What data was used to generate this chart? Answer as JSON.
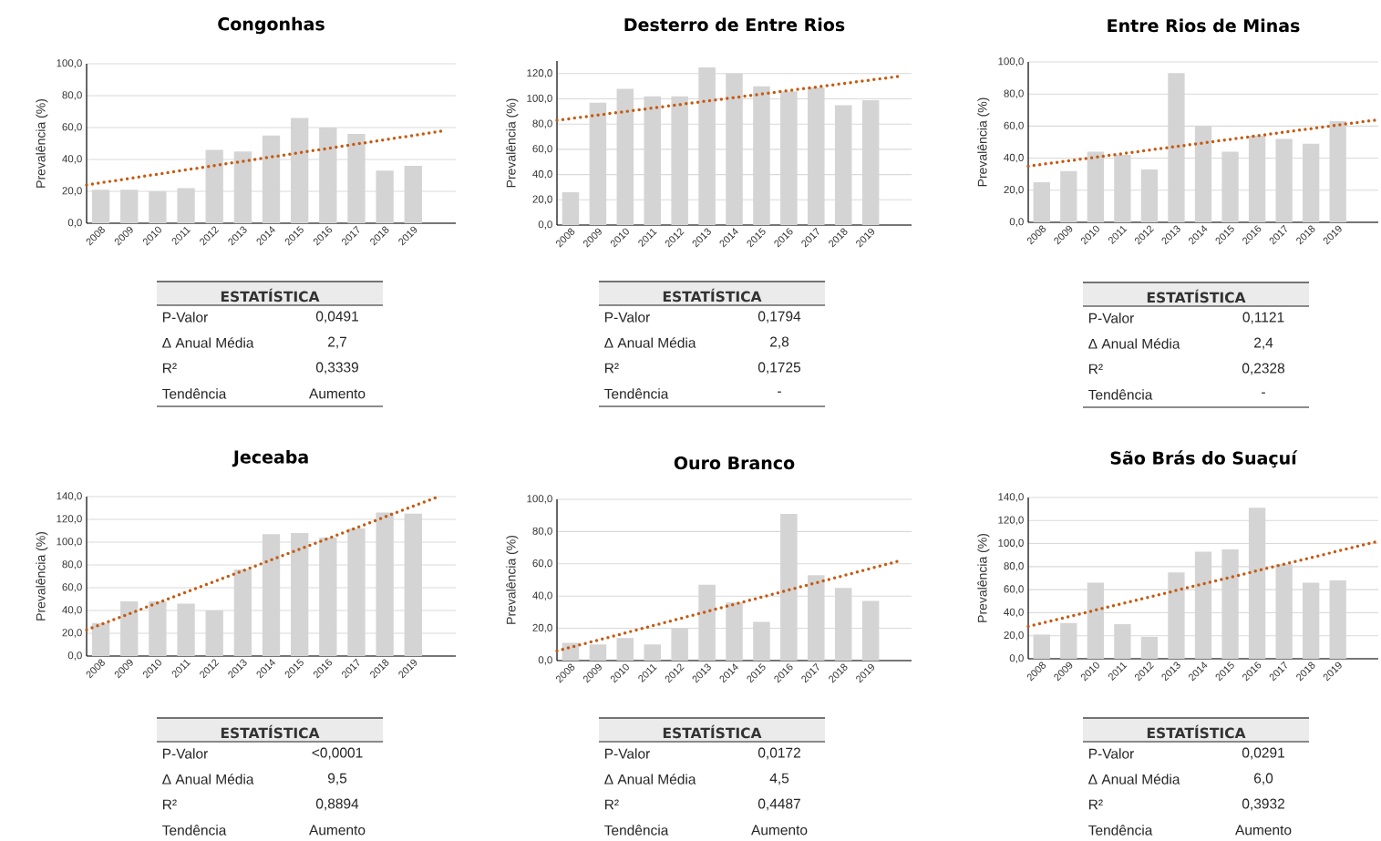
{
  "chart_data": [
    {
      "type": "bar",
      "title": "Congonhas",
      "ylabel": "Prevalência (%)",
      "x": [
        2008,
        2009,
        2010,
        2011,
        2012,
        2013,
        2014,
        2015,
        2016,
        2017,
        2018,
        2019
      ],
      "xlim": [
        2007.5,
        2020.5
      ],
      "xticks": [
        2008,
        2009,
        2010,
        2011,
        2012,
        2013,
        2014,
        2015,
        2016,
        2017,
        2018,
        2019
      ],
      "ylim": [
        0,
        100
      ],
      "yticks": [
        {
          "value": 0,
          "label": "0,0"
        },
        {
          "value": 20,
          "label": "20,0"
        },
        {
          "value": 40,
          "label": "40,0"
        },
        {
          "value": 60,
          "label": "60,0"
        },
        {
          "value": 80,
          "label": "80,0"
        },
        {
          "value": 100,
          "label": "100,0"
        }
      ],
      "grid": "y",
      "series": [
        {
          "color": "#d4d4d4",
          "values": [
            21,
            21,
            20,
            22,
            46,
            45,
            55,
            66,
            60,
            56,
            33,
            36
          ]
        },
        {
          "type": "line",
          "color": "#c55a11",
          "line_style": "dotted",
          "marker": "none",
          "x": [
            2007.5,
            2020.1
          ],
          "values": [
            24,
            58
          ]
        }
      ],
      "annotations": [
        "ESTATÍSTICA",
        "P-Valor",
        "0,0491",
        "Δ Anual Média",
        "2,7",
        "R²",
        "0,3339",
        "Tendência",
        "Aumento"
      ]
    },
    {
      "type": "bar",
      "title": "Desterro de Entre Rios",
      "ylabel": "Prevalência (%)",
      "x": [
        2008,
        2009,
        2010,
        2011,
        2012,
        2013,
        2014,
        2015,
        2016,
        2017,
        2018,
        2019
      ],
      "xlim": [
        2007.5,
        2020.5
      ],
      "xticks": [
        2008,
        2009,
        2010,
        2011,
        2012,
        2013,
        2014,
        2015,
        2016,
        2017,
        2018,
        2019
      ],
      "ylim": [
        0,
        130
      ],
      "yticks": [
        {
          "value": 0,
          "label": "0,0"
        },
        {
          "value": 20,
          "label": "20,0"
        },
        {
          "value": 40,
          "label": "40,0"
        },
        {
          "value": 60,
          "label": "60,0"
        },
        {
          "value": 80,
          "label": "80,0"
        },
        {
          "value": 100,
          "label": "100,0"
        },
        {
          "value": 120,
          "label": "120,0"
        }
      ],
      "grid": "y",
      "series": [
        {
          "color": "#d4d4d4",
          "values": [
            26,
            97,
            108,
            102,
            102,
            125,
            120,
            110,
            106,
            109,
            95,
            99
          ]
        },
        {
          "type": "line",
          "color": "#c55a11",
          "line_style": "dotted",
          "marker": "none",
          "x": [
            2007.5,
            2020.1
          ],
          "values": [
            83,
            118
          ]
        }
      ],
      "annotations": [
        "ESTATÍSTICA",
        "P-Valor",
        "0,1794",
        "Δ Anual Média",
        "2,8",
        "R²",
        "0,1725",
        "Tendência",
        "-"
      ]
    },
    {
      "type": "bar",
      "title": "Entre Rios de Minas",
      "ylabel": "Prevalência (%)",
      "x": [
        2008,
        2009,
        2010,
        2011,
        2012,
        2013,
        2014,
        2015,
        2016,
        2017,
        2018,
        2019
      ],
      "xlim": [
        2007.5,
        2020.5
      ],
      "xticks": [
        2008,
        2009,
        2010,
        2011,
        2012,
        2013,
        2014,
        2015,
        2016,
        2017,
        2018,
        2019
      ],
      "ylim": [
        0,
        100
      ],
      "yticks": [
        {
          "value": 0,
          "label": "0,0"
        },
        {
          "value": 20,
          "label": "20,0"
        },
        {
          "value": 40,
          "label": "40,0"
        },
        {
          "value": 60,
          "label": "60,0"
        },
        {
          "value": 80,
          "label": "80,0"
        },
        {
          "value": 100,
          "label": "100,0"
        }
      ],
      "grid": "y",
      "series": [
        {
          "color": "#d4d4d4",
          "values": [
            25,
            32,
            44,
            42,
            33,
            93,
            60,
            44,
            54,
            52,
            49,
            63
          ]
        },
        {
          "type": "line",
          "color": "#c55a11",
          "line_style": "dotted",
          "marker": "none",
          "x": [
            2007.5,
            2020.5
          ],
          "values": [
            35,
            64
          ]
        }
      ],
      "annotations": [
        "ESTATÍSTICA",
        "P-Valor",
        "0,1121",
        "Δ Anual Média",
        "2,4",
        "R²",
        "0,2328",
        "Tendência",
        "-"
      ]
    },
    {
      "type": "bar",
      "title": "Jeceaba",
      "ylabel": "Prevalência (%)",
      "x": [
        2008,
        2009,
        2010,
        2011,
        2012,
        2013,
        2014,
        2015,
        2016,
        2017,
        2018,
        2019
      ],
      "xlim": [
        2007.5,
        2020.5
      ],
      "xticks": [
        2008,
        2009,
        2010,
        2011,
        2012,
        2013,
        2014,
        2015,
        2016,
        2017,
        2018,
        2019
      ],
      "ylim": [
        0,
        140
      ],
      "yticks": [
        {
          "value": 0,
          "label": "0,0"
        },
        {
          "value": 20,
          "label": "20,0"
        },
        {
          "value": 40,
          "label": "40,0"
        },
        {
          "value": 60,
          "label": "60,0"
        },
        {
          "value": 80,
          "label": "80,0"
        },
        {
          "value": 100,
          "label": "100,0"
        },
        {
          "value": 120,
          "label": "120,0"
        },
        {
          "value": 140,
          "label": "140,0"
        }
      ],
      "grid": "y",
      "series": [
        {
          "color": "#d4d4d4",
          "values": [
            29,
            48,
            48,
            46,
            40,
            76,
            107,
            108,
            104,
            112,
            126,
            125
          ]
        },
        {
          "type": "line",
          "color": "#c55a11",
          "line_style": "dotted",
          "marker": "none",
          "x": [
            2007.5,
            2019.9
          ],
          "values": [
            23,
            140
          ]
        }
      ],
      "annotations": [
        "ESTATÍSTICA",
        "P-Valor",
        "<0,0001",
        "Δ Anual Média",
        "9,5",
        "R²",
        "0,8894",
        "Tendência",
        "Aumento"
      ]
    },
    {
      "type": "bar",
      "title": "Ouro Branco",
      "ylabel": "Prevalência (%)",
      "x": [
        2008,
        2009,
        2010,
        2011,
        2012,
        2013,
        2014,
        2015,
        2016,
        2017,
        2018,
        2019
      ],
      "xlim": [
        2007.5,
        2020.5
      ],
      "xticks": [
        2008,
        2009,
        2010,
        2011,
        2012,
        2013,
        2014,
        2015,
        2016,
        2017,
        2018,
        2019
      ],
      "ylim": [
        0,
        100
      ],
      "yticks": [
        {
          "value": 0,
          "label": "0,0"
        },
        {
          "value": 20,
          "label": "20,0"
        },
        {
          "value": 40,
          "label": "40,0"
        },
        {
          "value": 60,
          "label": "60,0"
        },
        {
          "value": 80,
          "label": "80,0"
        },
        {
          "value": 100,
          "label": "100,0"
        }
      ],
      "grid": "y",
      "series": [
        {
          "color": "#d4d4d4",
          "values": [
            11,
            10,
            14,
            10,
            20,
            47,
            36,
            24,
            91,
            53,
            45,
            37
          ]
        },
        {
          "type": "line",
          "color": "#c55a11",
          "line_style": "dotted",
          "marker": "none",
          "x": [
            2007.5,
            2020.1
          ],
          "values": [
            6,
            62
          ]
        }
      ],
      "annotations": [
        "ESTATÍSTICA",
        "P-Valor",
        "0,0172",
        "Δ Anual Média",
        "4,5",
        "R²",
        "0,4487",
        "Tendência",
        "Aumento"
      ]
    },
    {
      "type": "bar",
      "title": "São Brás do Suaçuí",
      "ylabel": "Prevalência (%)",
      "x": [
        2008,
        2009,
        2010,
        2011,
        2012,
        2013,
        2014,
        2015,
        2016,
        2017,
        2018,
        2019
      ],
      "xlim": [
        2007.5,
        2020.5
      ],
      "xticks": [
        2008,
        2009,
        2010,
        2011,
        2012,
        2013,
        2014,
        2015,
        2016,
        2017,
        2018,
        2019
      ],
      "ylim": [
        0,
        140
      ],
      "yticks": [
        {
          "value": 0,
          "label": "0,0"
        },
        {
          "value": 20,
          "label": "20,0"
        },
        {
          "value": 40,
          "label": "40,0"
        },
        {
          "value": 60,
          "label": "60,0"
        },
        {
          "value": 80,
          "label": "80,0"
        },
        {
          "value": 100,
          "label": "100,0"
        },
        {
          "value": 120,
          "label": "120,0"
        },
        {
          "value": 140,
          "label": "140,0"
        }
      ],
      "grid": "y",
      "series": [
        {
          "color": "#d4d4d4",
          "values": [
            21,
            31,
            66,
            30,
            19,
            75,
            93,
            95,
            131,
            82,
            66,
            68
          ]
        },
        {
          "type": "line",
          "color": "#c55a11",
          "line_style": "dotted",
          "marker": "none",
          "x": [
            2007.5,
            2020.5
          ],
          "values": [
            28,
            102
          ]
        }
      ],
      "annotations": [
        "ESTATÍSTICA",
        "P-Valor",
        "0,0291",
        "Δ Anual Média",
        "6,0",
        "R²",
        "0,3932",
        "Tendência",
        "Aumento"
      ]
    }
  ]
}
